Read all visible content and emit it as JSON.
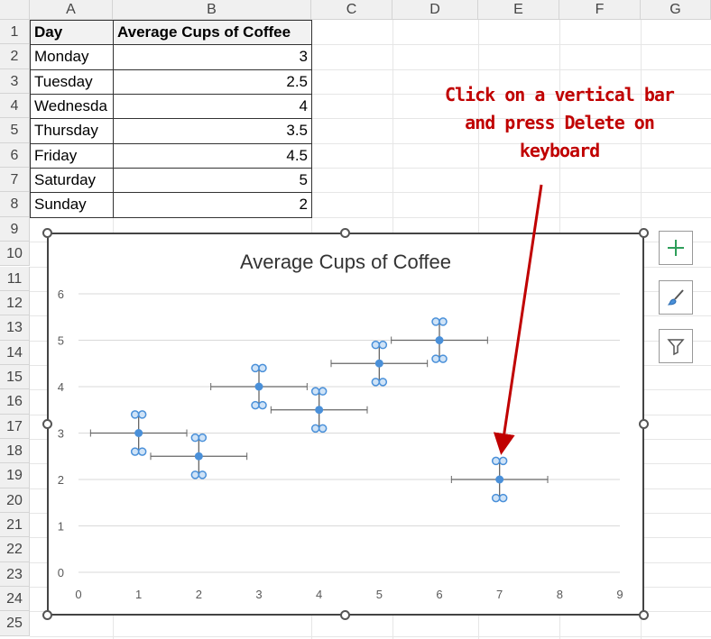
{
  "columns": [
    "A",
    "B",
    "C",
    "D",
    "E",
    "F",
    "G"
  ],
  "rows": [
    "1",
    "2",
    "3",
    "4",
    "5",
    "6",
    "7",
    "8",
    "9",
    "10",
    "11",
    "12",
    "13",
    "14",
    "15",
    "16",
    "17",
    "18",
    "19",
    "20",
    "21",
    "22",
    "23",
    "24",
    "25"
  ],
  "table": {
    "headers": [
      "Day",
      "Average Cups of Coffee"
    ],
    "rows": [
      [
        "Monday",
        "3"
      ],
      [
        "Tuesday",
        "2.5"
      ],
      [
        "Wednesda",
        "4"
      ],
      [
        "Thursday",
        "3.5"
      ],
      [
        "Friday",
        "4.5"
      ],
      [
        "Saturday",
        "5"
      ],
      [
        "Sunday",
        "2"
      ]
    ]
  },
  "annotation": {
    "lines": [
      "Click on a vertical bar",
      "and press Delete on",
      "keyboard"
    ],
    "color": "#c00000"
  },
  "chart_data": {
    "type": "scatter",
    "title": "Average Cups of Coffee",
    "x": [
      1,
      2,
      3,
      4,
      5,
      6,
      7
    ],
    "y": [
      3,
      2.5,
      4,
      3.5,
      4.5,
      5,
      2
    ],
    "x_error": 0.8,
    "y_error": 0.4,
    "xlim": [
      0,
      9
    ],
    "ylim": [
      0,
      6
    ],
    "xticks": [
      "0",
      "1",
      "2",
      "3",
      "4",
      "5",
      "6",
      "7",
      "8",
      "9"
    ],
    "yticks": [
      "0",
      "1",
      "2",
      "3",
      "4",
      "5",
      "6"
    ],
    "grid": true,
    "marker_color": "#4a90d9"
  },
  "side_buttons": [
    "chart-elements",
    "chart-styles",
    "chart-filters"
  ]
}
